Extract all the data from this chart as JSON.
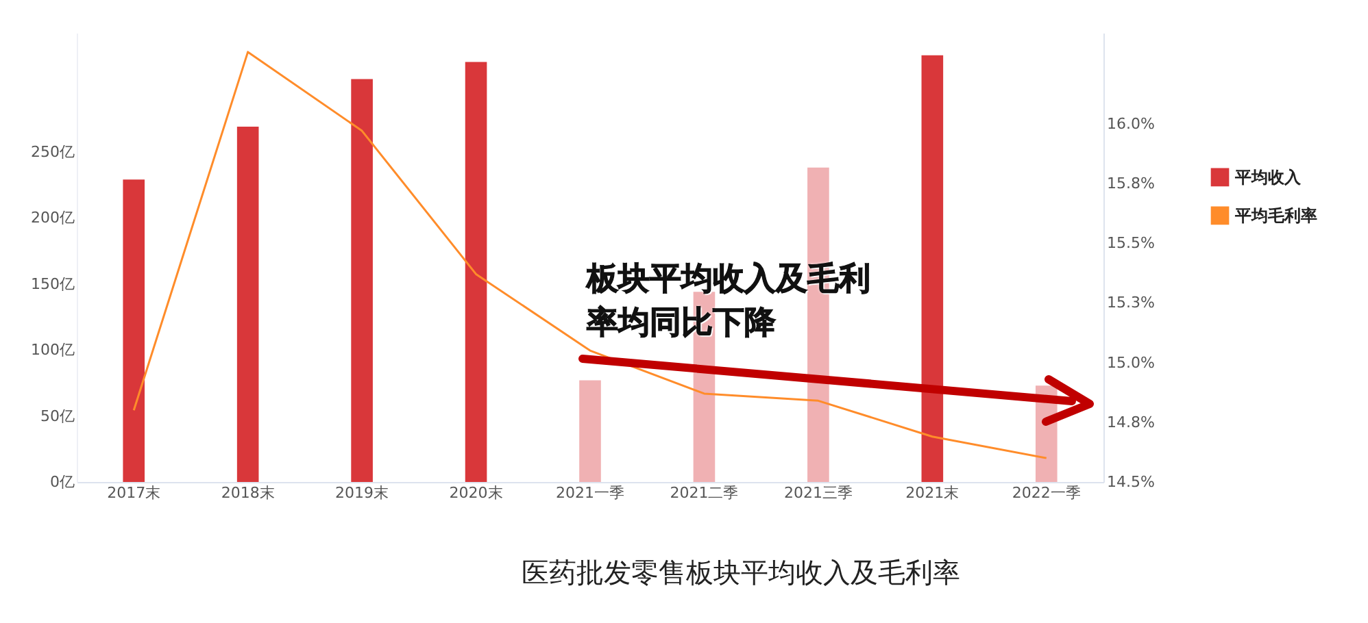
{
  "chart_data": {
    "type": "bar",
    "title": "医药批发零售板块平均收入及毛利率",
    "categories": [
      "2017末",
      "2018末",
      "2019末",
      "2020末",
      "2021一季",
      "2021二季",
      "2021三季",
      "2021末",
      "2022一季"
    ],
    "series": [
      {
        "name": "平均收入",
        "color": "#d9373a",
        "colors": [
          "#d9373a",
          "#d9373a",
          "#d9373a",
          "#d9373a",
          "#f0b1b3",
          "#f0b1b3",
          "#f0b1b3",
          "#d9373a",
          "#f0b1b3"
        ],
        "values": [
          229,
          269,
          305,
          318,
          77,
          144,
          238,
          323,
          73
        ]
      },
      {
        "name": "平均毛利率",
        "type": "line",
        "axis": "y2",
        "color": "#ff8c2a",
        "values": [
          14.8,
          16.3,
          15.97,
          15.37,
          15.05,
          14.87,
          14.84,
          14.69,
          14.6
        ]
      }
    ],
    "ylim": [
      0,
      340
    ],
    "yticks": [
      {
        "value": 0,
        "label": "0亿"
      },
      {
        "value": 50,
        "label": "50亿"
      },
      {
        "value": 100,
        "label": "100亿"
      },
      {
        "value": 150,
        "label": "150亿"
      },
      {
        "value": 200,
        "label": "200亿"
      },
      {
        "value": 250,
        "label": "250亿"
      }
    ],
    "y2lim": [
      14.5,
      16.38
    ],
    "y2ticks": [
      {
        "value": 14.5,
        "label": "14.5%"
      },
      {
        "value": 14.75,
        "label": "14.8%"
      },
      {
        "value": 15,
        "label": "15.0%"
      },
      {
        "value": 15.25,
        "label": "15.3%"
      },
      {
        "value": 15.5,
        "label": "15.5%"
      },
      {
        "value": 15.75,
        "label": "15.8%"
      },
      {
        "value": 16,
        "label": "16.0%"
      }
    ],
    "annotations": [
      "板块平均收入及毛利率均同比下降"
    ],
    "legend": "right",
    "grid": false
  }
}
